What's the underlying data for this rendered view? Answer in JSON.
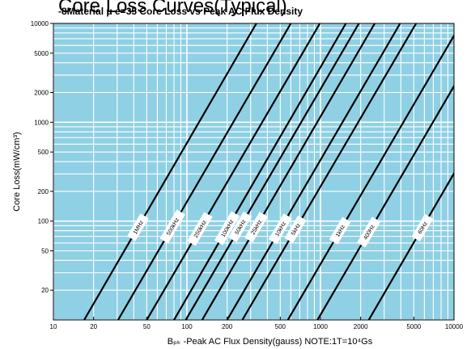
{
  "chart_data": {
    "type": "line",
    "title": "Core Loss Curves(Typical)",
    "subtitle": "-8Material  μ e=35 Core Loss vs Peak AC Flux Density",
    "xlabel": "Bₚₖ -Peak AC Flux Density(gauss)  NOTE:1T=10⁴Gs",
    "ylabel": "Core Loss(mW/cm³)",
    "x_scale": "log",
    "y_scale": "log",
    "xlim": [
      10,
      10000
    ],
    "ylim": [
      10,
      10000
    ],
    "grid": true,
    "plot_background": "#8fd0e4",
    "grid_color": "#ffffff",
    "line_color": "#000000",
    "x_ticks": [
      {
        "value": 10,
        "label": "10"
      },
      {
        "value": 20,
        "label": "20"
      },
      {
        "value": 50,
        "label": "50"
      },
      {
        "value": 100,
        "label": "100"
      },
      {
        "value": 200,
        "label": "200"
      },
      {
        "value": 500,
        "label": "500"
      },
      {
        "value": 1000,
        "label": "1000"
      },
      {
        "value": 2000,
        "label": "2000"
      },
      {
        "value": 5000,
        "label": "5000"
      },
      {
        "value": 10000,
        "label": "10000"
      }
    ],
    "y_ticks": [
      {
        "value": 20,
        "label": "20"
      },
      {
        "value": 50,
        "label": "50"
      },
      {
        "value": 100,
        "label": "100"
      },
      {
        "value": 200,
        "label": "200"
      },
      {
        "value": 500,
        "label": "500"
      },
      {
        "value": 1000,
        "label": "1000"
      },
      {
        "value": 2000,
        "label": "2000"
      },
      {
        "value": 5000,
        "label": "5000"
      },
      {
        "value": 10000,
        "label": "10000"
      }
    ],
    "series": [
      {
        "name": "1MHz",
        "x": [
          17,
          331
        ],
        "y": [
          10,
          10000
        ],
        "label_at": 43
      },
      {
        "name": "500kHz",
        "x": [
          30.5,
          600
        ],
        "y": [
          10,
          10000
        ],
        "label_at": 78
      },
      {
        "name": "250kHz",
        "x": [
          50,
          990
        ],
        "y": [
          10,
          10000
        ],
        "label_at": 125
      },
      {
        "name": "100kHz",
        "x": [
          80,
          1550
        ],
        "y": [
          10,
          10000
        ],
        "label_at": 200
      },
      {
        "name": "50kHz",
        "x": [
          98,
          1940
        ],
        "y": [
          10,
          10000
        ],
        "label_at": 250
      },
      {
        "name": "25kHz",
        "x": [
          130,
          2550
        ],
        "y": [
          10,
          10000
        ],
        "label_at": 330
      },
      {
        "name": "10kHz",
        "x": [
          200,
          3950
        ],
        "y": [
          10,
          10000
        ],
        "label_at": 500
      },
      {
        "name": "5kHz",
        "x": [
          260,
          5200
        ],
        "y": [
          10,
          10000
        ],
        "label_at": 650
      },
      {
        "name": "1kHz",
        "x": [
          570,
          11300
        ],
        "y": [
          10,
          10000
        ],
        "label_at": 1400
      },
      {
        "name": "400Hz",
        "x": [
          950,
          18800
        ],
        "y": [
          10,
          10000
        ],
        "label_at": 2300
      },
      {
        "name": "60Hz",
        "x": [
          2300,
          45000
        ],
        "y": [
          10,
          10000
        ],
        "label_at": 5800
      }
    ]
  }
}
